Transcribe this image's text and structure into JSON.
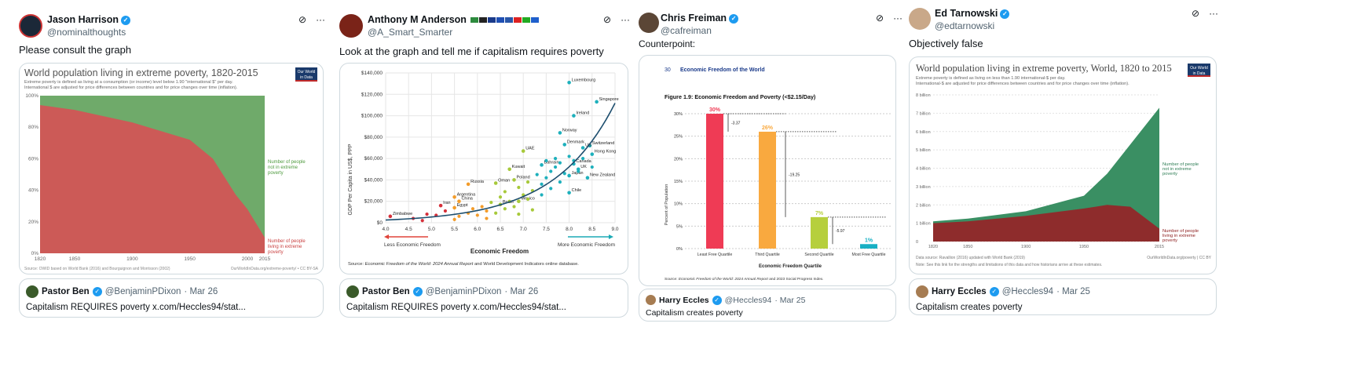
{
  "posts": [
    {
      "name": "Jason Harrison",
      "handle": "@nominalthoughts",
      "text": "Please consult the graph",
      "quote": {
        "name": "Pastor Ben",
        "handle": "@BenjaminPDixon",
        "date": "· Mar 26",
        "text": "Capitalism REQUIRES poverty x.com/Heccles94/stat..."
      },
      "chart": {
        "title": "World population living in extreme poverty, 1820-2015",
        "subtitle1": "Extreme poverty is defined as living at a consumption (or income) level below 1.90 \"international $\" per day.",
        "subtitle2": "International $ are adjusted for price differences between countries and for price changes over time (inflation).",
        "logo1": "Our World",
        "logo2": "in Data",
        "yticks": [
          "100%",
          "80%",
          "60%",
          "40%",
          "20%",
          "0%"
        ],
        "xticks": [
          "1820",
          "1850",
          "1900",
          "1950",
          "2000",
          "2015"
        ],
        "labelGreen": [
          "Number of people",
          "not in extreme",
          "poverty"
        ],
        "labelRed": [
          "Number of people",
          "living in extreme",
          "poverty"
        ],
        "source": "Source: OWID based on World Bank (2016) and Bourguignon and Morrisson (2002)",
        "credit": "OurWorldInData.org/extreme-poverty/ • CC BY-SA"
      }
    },
    {
      "name": "Anthony M Anderson",
      "handle": "@A_Smart_Smarter",
      "text": "Look at the graph and tell me if capitalism requires poverty",
      "quote": {
        "name": "Pastor Ben",
        "handle": "@BenjaminPDixon",
        "date": "· Mar 26",
        "text": "Capitalism REQUIRES poverty x.com/Heccles94/stat..."
      },
      "chart": {
        "ylabel": "GDP Per Capita in US$, PPP",
        "xlabel": "Economic Freedom",
        "yticks": [
          "$140,000",
          "$120,000",
          "$100,000",
          "$80,000",
          "$60,000",
          "$40,000",
          "$20,000",
          "$0"
        ],
        "xticks": [
          "4.0",
          "4.5",
          "5.0",
          "5.5",
          "6.0",
          "6.5",
          "7.0",
          "7.5",
          "8.0",
          "8.5",
          "9.0"
        ],
        "less": "Less Economic Freedom",
        "more": "More Economic Freedom",
        "source_label": "Source:",
        "source_italic": "Economic Freedom of the World: 2024 Annual Report",
        "source_rest": "and World Development Indicators online database.",
        "countries": [
          "Luxembourg",
          "Singapore",
          "Ireland",
          "Norway",
          "Denmark",
          "Switzerland",
          "US",
          "UAE",
          "Hong Kong",
          "Canada",
          "UK",
          "Bahrain",
          "Japan",
          "Kuwait",
          "New Zealand",
          "Poland",
          "Oman",
          "Russia",
          "Chile",
          "Argentina",
          "Iran",
          "Brazil",
          "China",
          "Mexico",
          "Zimbabwe",
          "Egypt"
        ]
      }
    },
    {
      "name": "Chris Freiman",
      "handle": "@cafreiman",
      "text": "Counterpoint:",
      "quote": {
        "name": "Harry Eccles",
        "handle": "@Heccles94",
        "date": "· Mar 25",
        "text": "Capitalism creates poverty"
      },
      "chart": {
        "page": "30",
        "header": "Economic Freedom of the World",
        "title": "Figure 1.9: Economic Freedom and Poverty (<$2.15/Day)",
        "ylabel": "Percent of Population",
        "xlabel": "Economic Freedom Quartile",
        "yticks": [
          "30%",
          "25%",
          "20%",
          "15%",
          "10%",
          "5%",
          "0%"
        ],
        "diffs": [
          "-3.37",
          "-19.25",
          "-5.97"
        ],
        "source_label": "Source:",
        "source_italic": "Economic Freedom of the World: 2024 Annual Report",
        "source_rest": "and 2023 Social Progress Index."
      }
    },
    {
      "name": "Ed Tarnowski",
      "handle": "@edtarnowski",
      "text": "Objectively false",
      "quote": {
        "name": "Harry Eccles",
        "handle": "@Heccles94",
        "date": "· Mar 25",
        "text": "Capitalism creates poverty"
      },
      "chart": {
        "title": "World population living in extreme poverty, World, 1820 to 2015",
        "subtitle1": "Extreme poverty is defined as living on less than 1.90 international-$ per day.",
        "subtitle2": "International-$ are adjusted for price differences between countries and for price changes over time (inflation).",
        "logo1": "Our World",
        "logo2": "in Data",
        "yticks": [
          "8 billion",
          "7 billion",
          "6 billion",
          "5 billion",
          "4 billion",
          "3 billion",
          "2 billion",
          "1 billion",
          "0"
        ],
        "xticks": [
          "1820",
          "1850",
          "1900",
          "1950",
          "2015"
        ],
        "labelGreen": [
          "Number of people",
          "not in extreme",
          "poverty"
        ],
        "labelRed": [
          "Number of people",
          "living in extreme",
          "poverty"
        ],
        "source": "Data source: Ravallion (2016) updated with World Bank (2019)",
        "credit": "OurWorldInData.org/poverty | CC BY",
        "note": "Note: See this link for the strengths and limitations of this data and how historians arrive at these estimates."
      }
    }
  ],
  "chart_data": [
    {
      "type": "area",
      "title": "World population living in extreme poverty, 1820-2015",
      "x": [
        1820,
        1850,
        1900,
        1950,
        1970,
        1990,
        2000,
        2015
      ],
      "series": [
        {
          "name": "Number of people living in extreme poverty",
          "values": [
            94,
            91,
            83,
            72,
            60,
            37,
            28,
            10
          ]
        },
        {
          "name": "Number of people not in extreme poverty",
          "values": [
            6,
            9,
            17,
            28,
            40,
            63,
            72,
            90
          ]
        }
      ],
      "ylabel": "%",
      "ylim": [
        0,
        100
      ]
    },
    {
      "type": "scatter",
      "xlabel": "Economic Freedom",
      "ylabel": "GDP Per Capita in US$, PPP",
      "xlim": [
        4,
        9
      ],
      "ylim": [
        0,
        140000
      ],
      "points": [
        {
          "name": "Luxembourg",
          "x": 8.0,
          "y": 131000
        },
        {
          "name": "Singapore",
          "x": 8.6,
          "y": 113000
        },
        {
          "name": "Ireland",
          "x": 8.1,
          "y": 100000
        },
        {
          "name": "Norway",
          "x": 7.8,
          "y": 84000
        },
        {
          "name": "Denmark",
          "x": 7.9,
          "y": 73000
        },
        {
          "name": "Switzerland",
          "x": 8.45,
          "y": 72000
        },
        {
          "name": "US",
          "x": 8.3,
          "y": 70000
        },
        {
          "name": "UAE",
          "x": 7.0,
          "y": 67000
        },
        {
          "name": "Hong Kong",
          "x": 8.5,
          "y": 64000
        },
        {
          "name": "Canada",
          "x": 8.1,
          "y": 55000
        },
        {
          "name": "UK",
          "x": 8.2,
          "y": 50000
        },
        {
          "name": "Bahrain",
          "x": 7.4,
          "y": 54000
        },
        {
          "name": "Japan",
          "x": 8.0,
          "y": 44000
        },
        {
          "name": "Kuwait",
          "x": 6.7,
          "y": 50000
        },
        {
          "name": "New Zealand",
          "x": 8.4,
          "y": 42000
        },
        {
          "name": "Poland",
          "x": 6.8,
          "y": 40000
        },
        {
          "name": "Oman",
          "x": 6.4,
          "y": 37000
        },
        {
          "name": "Russia",
          "x": 5.8,
          "y": 36000
        },
        {
          "name": "Chile",
          "x": 8.0,
          "y": 28000
        },
        {
          "name": "Argentina",
          "x": 5.5,
          "y": 24000
        },
        {
          "name": "Iran",
          "x": 5.2,
          "y": 16000
        },
        {
          "name": "Brazil",
          "x": 6.5,
          "y": 17000
        },
        {
          "name": "China",
          "x": 5.6,
          "y": 20000
        },
        {
          "name": "Mexico",
          "x": 6.9,
          "y": 20000
        },
        {
          "name": "Zimbabwe",
          "x": 4.1,
          "y": 6000
        },
        {
          "name": "Egypt",
          "x": 5.5,
          "y": 14000
        }
      ]
    },
    {
      "type": "bar",
      "title": "Figure 1.9: Economic Freedom and Poverty (<$2.15/Day)",
      "categories": [
        "Least Free Quartile",
        "Third Quartile",
        "Second Quartile",
        "Most Free Quartile"
      ],
      "values": [
        30,
        26,
        7,
        1
      ],
      "labels": [
        "30%",
        "26%",
        "7%",
        "1%"
      ],
      "colors": [
        "#ef3b55",
        "#f9a93f",
        "#b6cf3d",
        "#17b0c4"
      ],
      "ylabel": "Percent of Population",
      "xlabel": "Economic Freedom Quartile",
      "ylim": [
        0,
        30
      ]
    },
    {
      "type": "area",
      "title": "World population living in extreme poverty, World, 1820 to 2015",
      "x": [
        1820,
        1850,
        1900,
        1950,
        1970,
        1990,
        2015
      ],
      "series": [
        {
          "name": "Number of people living in extreme poverty",
          "values": [
            1.0,
            1.1,
            1.4,
            1.8,
            2.0,
            1.9,
            0.7
          ]
        },
        {
          "name": "Number of people not in extreme poverty",
          "values": [
            0.1,
            0.15,
            0.25,
            0.7,
            1.7,
            3.4,
            6.6
          ]
        }
      ],
      "ylabel": "people",
      "ylim": [
        0,
        8
      ]
    }
  ]
}
